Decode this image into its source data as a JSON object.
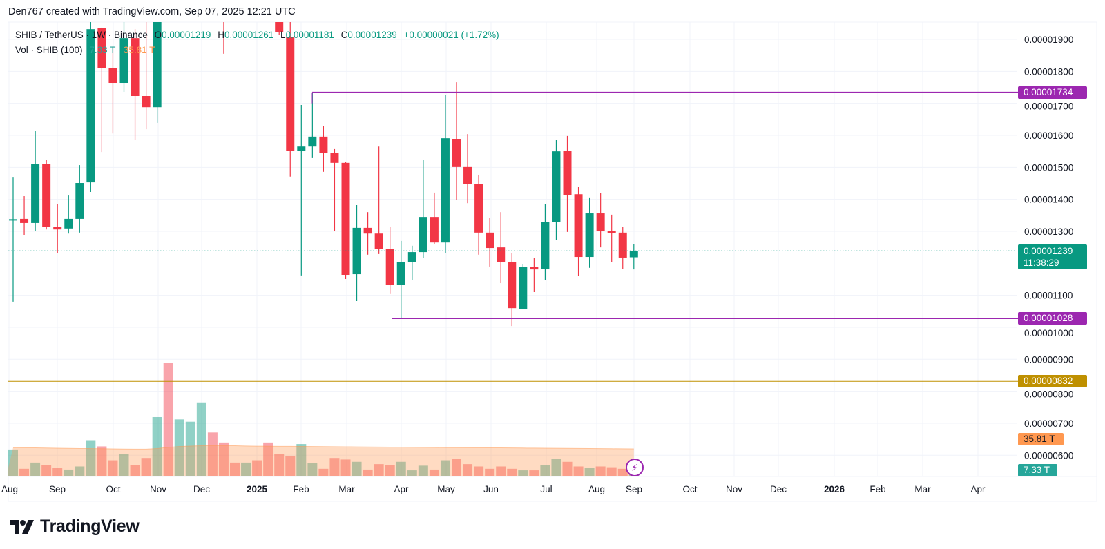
{
  "attribution": "Den767 created with TradingView.com, Sep 07, 2025 12:21 UTC",
  "legend": {
    "symbol": "SHIB / TetherUS · 1W · Binance",
    "open_label": "O",
    "open": "0.00001219",
    "high_label": "H",
    "high": "0.00001261",
    "low_label": "L",
    "low": "0.00001181",
    "close_label": "C",
    "close": "0.00001239",
    "change": "+0.00000021 (+1.72%)",
    "volume_title": "Vol · SHIB (100)",
    "volume_value": "7.33 T",
    "volume_ma_value": "35.81 T"
  },
  "price_scale": {
    "ticks": [
      "0.00001900",
      "0.00001800",
      "0.00001700",
      "0.00001600",
      "0.00001500",
      "0.00001400",
      "0.00001300",
      "0.00001100",
      "0.00001000",
      "0.00000900",
      "0.00000800",
      "0.00000700",
      "0.00000600"
    ],
    "last_price_label": "0.00001239",
    "countdown": "11:38:29",
    "volume_ma_badge": "35.81 T",
    "volume_badge": "7.33 T"
  },
  "horizontal_lines": [
    {
      "price": 1.734e-05,
      "label": "0.00001734",
      "color": "#9c27b0"
    },
    {
      "price": 1.028e-05,
      "label": "0.00001028",
      "color": "#9c27b0"
    },
    {
      "price": 8.32e-06,
      "label": "0.00000832",
      "color": "#bf9000"
    }
  ],
  "time_axis": [
    "Aug",
    "Sep",
    "Oct",
    "Nov",
    "Dec",
    "2025",
    "Feb",
    "Mar",
    "Apr",
    "May",
    "Jun",
    "Jul",
    "Aug",
    "Sep",
    "Oct",
    "Nov",
    "Dec",
    "2026",
    "Feb",
    "Mar",
    "Apr"
  ],
  "time_axis_bold": [
    "2025",
    "2026"
  ],
  "colors": {
    "up": "#089981",
    "down": "#f23645",
    "volume_up": "rgba(8,153,129,0.45)",
    "volume_down": "rgba(242,54,69,0.45)",
    "volume_ma": "#ff9850",
    "grid": "#f0f3fa"
  },
  "logo_text": "TradingView",
  "overlay_icon": "lightning-icon",
  "chart_data": {
    "type": "candlestick",
    "interval": "1W",
    "ylim": [
      5.5e-06,
      1.96e-05
    ],
    "columns": [
      "open",
      "high",
      "low",
      "close",
      "volume_T",
      "up"
    ],
    "candles": [
      [
        1.335e-05,
        1.468e-05,
        1.08e-05,
        1.338e-05,
        35,
        1
      ],
      [
        1.339e-05,
        1.41e-05,
        1.289e-05,
        1.326e-05,
        10,
        0
      ],
      [
        1.326e-05,
        1.613e-05,
        1.3e-05,
        1.511e-05,
        18,
        1
      ],
      [
        1.511e-05,
        1.524e-05,
        1.306e-05,
        1.315e-05,
        15,
        0
      ],
      [
        1.315e-05,
        1.386e-05,
        1.231e-05,
        1.306e-05,
        11,
        0
      ],
      [
        1.309e-05,
        1.412e-05,
        1.293e-05,
        1.339e-05,
        9,
        1
      ],
      [
        1.339e-05,
        1.507e-05,
        1.296e-05,
        1.451e-05,
        13,
        1
      ],
      [
        1.453e-05,
        null,
        1.423e-05,
        1.932e-05,
        47,
        1
      ],
      [
        1.935e-05,
        1.937e-05,
        1.548e-05,
        1.811e-05,
        39,
        0
      ],
      [
        1.811e-05,
        1.878e-05,
        1.606e-05,
        1.764e-05,
        21,
        0
      ],
      [
        1.764e-05,
        null,
        1.736e-05,
        1.904e-05,
        29,
        1
      ],
      [
        1.904e-05,
        1.932e-05,
        1.585e-05,
        1.723e-05,
        15,
        0
      ],
      [
        1.723e-05,
        null,
        1.619e-05,
        1.688e-05,
        24,
        0
      ],
      [
        1.688e-05,
        null,
        1.639e-05,
        null,
        77,
        1
      ],
      [
        null,
        null,
        null,
        null,
        147,
        0
      ],
      [
        null,
        null,
        null,
        null,
        74,
        1
      ],
      [
        null,
        null,
        null,
        null,
        71,
        1
      ],
      [
        null,
        null,
        null,
        null,
        96,
        1
      ],
      [
        null,
        null,
        null,
        null,
        57,
        0
      ],
      [
        null,
        null,
        1.855e-05,
        null,
        44,
        0
      ],
      [
        null,
        null,
        null,
        null,
        18,
        0
      ],
      [
        null,
        null,
        null,
        null,
        18,
        1
      ],
      [
        null,
        null,
        null,
        null,
        21,
        0
      ],
      [
        null,
        null,
        null,
        null,
        44,
        0
      ],
      [
        null,
        null,
        1.915e-05,
        1.922e-05,
        29,
        0
      ],
      [
        1.908e-05,
        null,
        1.471e-05,
        1.552e-05,
        26,
        0
      ],
      [
        1.552e-05,
        1.695e-05,
        1.162e-05,
        1.565e-05,
        42,
        1
      ],
      [
        1.565e-05,
        1.734e-05,
        1.529e-05,
        1.596e-05,
        17,
        1
      ],
      [
        1.596e-05,
        1.63e-05,
        1.486e-05,
        1.546e-05,
        10,
        0
      ],
      [
        1.546e-05,
        1.557e-05,
        1.3e-05,
        1.514e-05,
        24,
        0
      ],
      [
        1.514e-05,
        1.518e-05,
        1.151e-05,
        1.164e-05,
        22,
        0
      ],
      [
        1.166e-05,
        1.382e-05,
        1.082e-05,
        1.311e-05,
        19,
        1
      ],
      [
        1.311e-05,
        1.36e-05,
        1.227e-05,
        1.293e-05,
        9,
        0
      ],
      [
        1.293e-05,
        1.565e-05,
        1.229e-05,
        1.244e-05,
        16,
        0
      ],
      [
        1.246e-05,
        1.315e-05,
        1.104e-05,
        1.132e-05,
        15,
        0
      ],
      [
        1.132e-05,
        1.27e-05,
        1.028e-05,
        1.205e-05,
        19,
        1
      ],
      [
        1.205e-05,
        1.255e-05,
        1.147e-05,
        1.235e-05,
        8,
        1
      ],
      [
        1.235e-05,
        1.524e-05,
        1.218e-05,
        1.345e-05,
        14,
        1
      ],
      [
        1.345e-05,
        1.421e-05,
        1.259e-05,
        1.265e-05,
        9,
        0
      ],
      [
        1.265e-05,
        1.727e-05,
        1.231e-05,
        1.591e-05,
        21,
        1
      ],
      [
        1.589e-05,
        1.766e-05,
        1.397e-05,
        1.501e-05,
        23,
        0
      ],
      [
        1.501e-05,
        1.604e-05,
        1.388e-05,
        1.447e-05,
        16,
        0
      ],
      [
        1.447e-05,
        1.477e-05,
        1.227e-05,
        1.296e-05,
        13,
        0
      ],
      [
        1.296e-05,
        1.343e-05,
        1.19e-05,
        1.248e-05,
        10,
        0
      ],
      [
        1.25e-05,
        1.36e-05,
        1.138e-05,
        1.205e-05,
        13,
        0
      ],
      [
        1.205e-05,
        1.233e-05,
        1.004e-05,
        1.06e-05,
        10,
        0
      ],
      [
        1.058e-05,
        1.198e-05,
        1.056e-05,
        1.188e-05,
        8,
        1
      ],
      [
        1.188e-05,
        1.216e-05,
        1.11e-05,
        1.181e-05,
        8,
        0
      ],
      [
        1.183e-05,
        1.386e-05,
        1.147e-05,
        1.33e-05,
        15,
        1
      ],
      [
        1.33e-05,
        1.585e-05,
        1.274e-05,
        1.55e-05,
        23,
        1
      ],
      [
        1.552e-05,
        1.598e-05,
        1.298e-05,
        1.414e-05,
        19,
        0
      ],
      [
        1.416e-05,
        1.438e-05,
        1.16e-05,
        1.22e-05,
        13,
        0
      ],
      [
        1.22e-05,
        1.406e-05,
        1.186e-05,
        1.356e-05,
        11,
        1
      ],
      [
        1.356e-05,
        1.419e-05,
        1.25e-05,
        1.3e-05,
        13,
        0
      ],
      [
        1.3e-05,
        1.352e-05,
        1.203e-05,
        1.296e-05,
        12,
        0
      ],
      [
        1.296e-05,
        1.315e-05,
        1.183e-05,
        1.218e-05,
        10,
        0
      ],
      [
        1.219e-05,
        1.261e-05,
        1.181e-05,
        1.239e-05,
        7.33,
        1
      ]
    ],
    "volume_ma_100_T": [
      37.5,
      37.3,
      37.1,
      36.9,
      36.7,
      36.5,
      36.3,
      36.2,
      36.0,
      35.8,
      35.6,
      35.5,
      35.5,
      36.3,
      37.8,
      38.8,
      39.4,
      39.8,
      40.0,
      40.0,
      39.8,
      39.5,
      39.3,
      39.2,
      39.1,
      39.0,
      38.9,
      38.8,
      38.7,
      38.6,
      38.5,
      38.4,
      38.3,
      38.2,
      38.1,
      38.0,
      37.9,
      37.8,
      37.7,
      37.6,
      37.5,
      37.4,
      37.3,
      37.2,
      37.1,
      37.0,
      36.9,
      36.8,
      36.7,
      36.6,
      36.5,
      36.4,
      36.3,
      36.2,
      36.0,
      35.9,
      35.81
    ]
  }
}
